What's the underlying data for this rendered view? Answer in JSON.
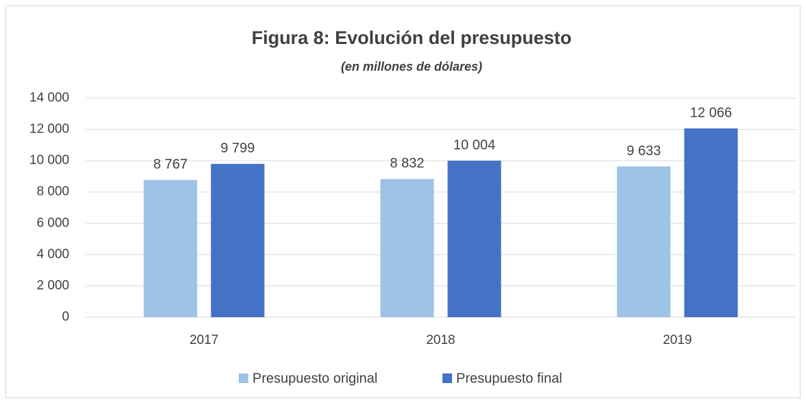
{
  "chart_data": {
    "type": "bar",
    "title": "Figura 8: Evolución del presupuesto",
    "subtitle": "(en millones de dólares)",
    "categories": [
      "2017",
      "2018",
      "2019"
    ],
    "series": [
      {
        "name": "Presupuesto original",
        "color": "#9dc3e6",
        "values": [
          8767,
          8832,
          9633
        ],
        "value_labels": [
          "8 767",
          "8 832",
          "9 633"
        ]
      },
      {
        "name": "Presupuesto final",
        "color": "#4472c4",
        "values": [
          9799,
          10004,
          12066
        ],
        "value_labels": [
          "9 799",
          "10 004",
          "12 066"
        ]
      }
    ],
    "ylim": [
      0,
      14000
    ],
    "yticks": [
      0,
      {
        "value": 2000,
        "label": "2 000"
      },
      {
        "value": 4000,
        "label": "4 000"
      },
      {
        "value": 6000,
        "label": "6 000"
      },
      {
        "value": 8000,
        "label": "8 000"
      },
      {
        "value": 10000,
        "label": "10 000"
      },
      {
        "value": 12000,
        "label": "12 000"
      },
      {
        "value": 14000,
        "label": "14 000"
      }
    ],
    "grid": true,
    "legend": "bottom"
  }
}
